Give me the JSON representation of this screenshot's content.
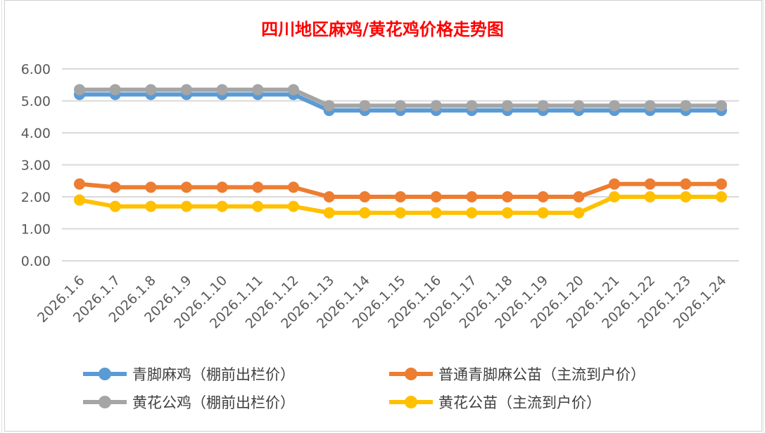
{
  "chart_data": {
    "type": "line",
    "title": "四川地区麻鸡/黄花鸡价格走势图",
    "xlabel": "",
    "ylabel": "",
    "ylim": [
      0,
      6
    ],
    "yticks": [
      "0.00",
      "1.00",
      "2.00",
      "3.00",
      "4.00",
      "5.00",
      "6.00"
    ],
    "grid": true,
    "legend_position": "bottom",
    "categories": [
      "2026.1.6",
      "2026.1.7",
      "2026.1.8",
      "2026.1.9",
      "2026.1.10",
      "2026.1.11",
      "2026.1.12",
      "2026.1.13",
      "2026.1.14",
      "2026.1.15",
      "2026.1.16",
      "2026.1.17",
      "2026.1.18",
      "2026.1.19",
      "2026.1.20",
      "2026.1.21",
      "2026.1.22",
      "2026.1.23",
      "2026.1.24"
    ],
    "series": [
      {
        "name": "青脚麻鸡（棚前出栏价）",
        "color": "#5b9bd5",
        "values": [
          5.2,
          5.2,
          5.2,
          5.2,
          5.2,
          5.2,
          5.2,
          4.7,
          4.7,
          4.7,
          4.7,
          4.7,
          4.7,
          4.7,
          4.7,
          4.7,
          4.7,
          4.7,
          4.7
        ]
      },
      {
        "name": "普通青脚麻公苗（主流到户价）",
        "color": "#ed7d31",
        "values": [
          2.4,
          2.3,
          2.3,
          2.3,
          2.3,
          2.3,
          2.3,
          2.0,
          2.0,
          2.0,
          2.0,
          2.0,
          2.0,
          2.0,
          2.0,
          2.4,
          2.4,
          2.4,
          2.4
        ]
      },
      {
        "name": "黄花公鸡（棚前出栏价）",
        "color": "#a5a5a5",
        "values": [
          5.35,
          5.35,
          5.35,
          5.35,
          5.35,
          5.35,
          5.35,
          4.85,
          4.85,
          4.85,
          4.85,
          4.85,
          4.85,
          4.85,
          4.85,
          4.85,
          4.85,
          4.85,
          4.85
        ]
      },
      {
        "name": "黄花公苗（主流到户价）",
        "color": "#ffc000",
        "values": [
          1.9,
          1.7,
          1.7,
          1.7,
          1.7,
          1.7,
          1.7,
          1.5,
          1.5,
          1.5,
          1.5,
          1.5,
          1.5,
          1.5,
          1.5,
          2.0,
          2.0,
          2.0,
          2.0
        ]
      }
    ]
  }
}
